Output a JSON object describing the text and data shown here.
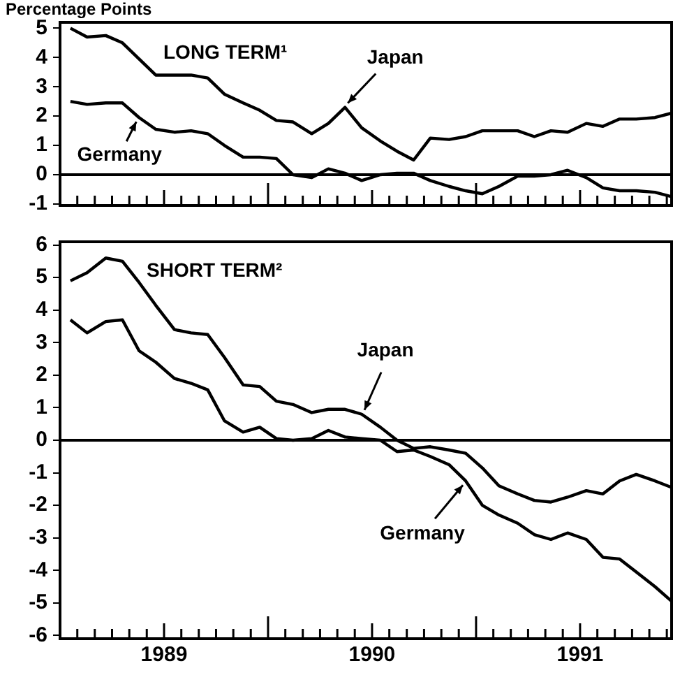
{
  "chart_data": [
    {
      "type": "line",
      "title": "LONG TERM¹",
      "ylabel": "Percentage Points",
      "x": [
        1989.05,
        1989.13,
        1989.22,
        1989.3,
        1989.38,
        1989.46,
        1989.55,
        1989.63,
        1989.71,
        1989.79,
        1989.88,
        1989.96,
        1990.04,
        1990.12,
        1990.21,
        1990.29,
        1990.37,
        1990.45,
        1990.54,
        1990.62,
        1990.7,
        1990.78,
        1990.87,
        1990.95,
        1991.03,
        1991.11,
        1991.2,
        1991.28,
        1991.36,
        1991.44,
        1991.53,
        1991.61,
        1991.69,
        1991.77,
        1991.86,
        1991.94
      ],
      "series": [
        {
          "name": "Japan",
          "color": "#000000",
          "values": [
            5.0,
            4.7,
            4.75,
            4.5,
            3.95,
            3.4,
            3.4,
            3.4,
            3.3,
            2.75,
            2.45,
            2.2,
            1.85,
            1.8,
            1.4,
            1.75,
            2.3,
            1.6,
            1.15,
            0.8,
            0.5,
            1.25,
            1.2,
            1.3,
            1.5,
            1.5,
            1.5,
            1.3,
            1.5,
            1.45,
            1.75,
            1.65,
            1.9,
            1.9,
            1.95,
            2.1
          ]
        },
        {
          "name": "Germany",
          "color": "#000000",
          "values": [
            2.5,
            2.4,
            2.45,
            2.45,
            1.95,
            1.55,
            1.45,
            1.5,
            1.4,
            1.0,
            0.6,
            0.6,
            0.55,
            0.0,
            -0.1,
            0.2,
            0.05,
            -0.2,
            0.0,
            0.05,
            0.05,
            -0.2,
            -0.4,
            -0.55,
            -0.65,
            -0.4,
            -0.05,
            -0.05,
            0.0,
            0.15,
            -0.1,
            -0.45,
            -0.55,
            -0.55,
            -0.6,
            -0.75
          ]
        }
      ],
      "xlim": [
        1989,
        1991.94
      ],
      "ylim": [
        -1.05,
        5.2
      ],
      "yticks": [
        -1,
        0,
        1,
        2,
        3,
        4,
        5
      ],
      "xticks": [
        {
          "value": 1989.083,
          "label": null
        },
        {
          "value": 1989.167,
          "label": null
        },
        {
          "value": 1989.25,
          "label": null
        },
        {
          "value": 1989.333,
          "label": null
        },
        {
          "value": 1989.417,
          "label": null
        },
        {
          "value": 1989.5,
          "label": null
        },
        {
          "value": 1989.583,
          "label": null
        },
        {
          "value": 1989.667,
          "label": null
        },
        {
          "value": 1989.75,
          "label": null
        },
        {
          "value": 1989.833,
          "label": null
        },
        {
          "value": 1989.917,
          "label": null
        },
        {
          "value": 1990,
          "label": null
        },
        {
          "value": 1990.083,
          "label": null
        },
        {
          "value": 1990.167,
          "label": null
        },
        {
          "value": 1990.25,
          "label": null
        },
        {
          "value": 1990.333,
          "label": null
        },
        {
          "value": 1990.417,
          "label": null
        },
        {
          "value": 1990.5,
          "label": null
        },
        {
          "value": 1990.583,
          "label": null
        },
        {
          "value": 1990.667,
          "label": null
        },
        {
          "value": 1990.75,
          "label": null
        },
        {
          "value": 1990.833,
          "label": null
        },
        {
          "value": 1990.917,
          "label": null
        },
        {
          "value": 1991,
          "label": null
        },
        {
          "value": 1991.083,
          "label": null
        },
        {
          "value": 1991.167,
          "label": null
        },
        {
          "value": 1991.25,
          "label": null
        },
        {
          "value": 1991.333,
          "label": null
        },
        {
          "value": 1991.417,
          "label": null
        },
        {
          "value": 1991.5,
          "label": null
        },
        {
          "value": 1991.583,
          "label": null
        },
        {
          "value": 1991.667,
          "label": null
        },
        {
          "value": 1991.75,
          "label": null
        },
        {
          "value": 1991.833,
          "label": null
        },
        {
          "value": 1991.917,
          "label": null
        }
      ],
      "tick_labels": "y",
      "ref_lines": [
        {
          "axis": "y",
          "value": 0
        }
      ],
      "grid": false,
      "legend": "bottom left",
      "marker": "none",
      "line_style": "solid"
    },
    {
      "type": "line",
      "title": "SHORT TERM²",
      "x": [
        1989.05,
        1989.13,
        1989.22,
        1989.3,
        1989.38,
        1989.46,
        1989.55,
        1989.63,
        1989.71,
        1989.79,
        1989.88,
        1989.96,
        1990.04,
        1990.12,
        1990.21,
        1990.29,
        1990.37,
        1990.45,
        1990.54,
        1990.62,
        1990.7,
        1990.78,
        1990.87,
        1990.95,
        1991.03,
        1991.11,
        1991.2,
        1991.28,
        1991.36,
        1991.44,
        1991.53,
        1991.61,
        1991.69,
        1991.77,
        1991.86,
        1991.94
      ],
      "series": [
        {
          "name": "Japan",
          "color": "#000000",
          "values": [
            4.9,
            5.15,
            5.6,
            5.5,
            4.85,
            4.15,
            3.4,
            3.3,
            3.25,
            2.55,
            1.7,
            1.65,
            1.2,
            1.1,
            0.85,
            0.95,
            0.95,
            0.8,
            0.4,
            0.0,
            -0.25,
            -0.2,
            -0.3,
            -0.4,
            -0.85,
            -1.4,
            -1.65,
            -1.85,
            -1.9,
            -1.75,
            -1.55,
            -1.65,
            -1.25,
            -1.05,
            -1.25,
            -1.45
          ]
        },
        {
          "name": "Germany",
          "color": "#000000",
          "values": [
            3.7,
            3.3,
            3.65,
            3.7,
            2.75,
            2.4,
            1.9,
            1.75,
            1.55,
            0.6,
            0.25,
            0.4,
            0.05,
            0.0,
            0.05,
            0.3,
            0.1,
            0.05,
            0.0,
            -0.35,
            -0.3,
            -0.5,
            -0.75,
            -1.25,
            -2.0,
            -2.3,
            -2.55,
            -2.9,
            -3.05,
            -2.85,
            -3.05,
            -3.6,
            -3.65,
            -4.05,
            -4.5,
            -4.95
          ]
        }
      ],
      "xlim": [
        1989,
        1991.94
      ],
      "ylim": [
        -6.1,
        6.1
      ],
      "yticks": [
        -6,
        -5,
        -4,
        -3,
        -2,
        -1,
        0,
        1,
        2,
        3,
        4,
        5,
        6
      ],
      "xticks": [
        {
          "value": 1989.083,
          "label": null
        },
        {
          "value": 1989.167,
          "label": null
        },
        {
          "value": 1989.25,
          "label": null
        },
        {
          "value": 1989.333,
          "label": null
        },
        {
          "value": 1989.417,
          "label": null
        },
        {
          "value": 1989.5,
          "label": "1989"
        },
        {
          "value": 1989.583,
          "label": null
        },
        {
          "value": 1989.667,
          "label": null
        },
        {
          "value": 1989.75,
          "label": null
        },
        {
          "value": 1989.833,
          "label": null
        },
        {
          "value": 1989.917,
          "label": null
        },
        {
          "value": 1990,
          "label": null
        },
        {
          "value": 1990.083,
          "label": null
        },
        {
          "value": 1990.167,
          "label": null
        },
        {
          "value": 1990.25,
          "label": null
        },
        {
          "value": 1990.333,
          "label": null
        },
        {
          "value": 1990.417,
          "label": null
        },
        {
          "value": 1990.5,
          "label": "1990"
        },
        {
          "value": 1990.583,
          "label": null
        },
        {
          "value": 1990.667,
          "label": null
        },
        {
          "value": 1990.75,
          "label": null
        },
        {
          "value": 1990.833,
          "label": null
        },
        {
          "value": 1990.917,
          "label": null
        },
        {
          "value": 1991,
          "label": null
        },
        {
          "value": 1991.083,
          "label": null
        },
        {
          "value": 1991.167,
          "label": null
        },
        {
          "value": 1991.25,
          "label": null
        },
        {
          "value": 1991.333,
          "label": null
        },
        {
          "value": 1991.417,
          "label": null
        },
        {
          "value": 1991.5,
          "label": "1991"
        },
        {
          "value": 1991.583,
          "label": null
        },
        {
          "value": 1991.667,
          "label": null
        },
        {
          "value": 1991.75,
          "label": null
        },
        {
          "value": 1991.833,
          "label": null
        },
        {
          "value": 1991.917,
          "label": null
        }
      ],
      "ref_lines": [
        {
          "axis": "y",
          "value": 0
        }
      ],
      "grid": false,
      "legend": "bottom right",
      "marker": "none",
      "line_style": "solid"
    }
  ]
}
